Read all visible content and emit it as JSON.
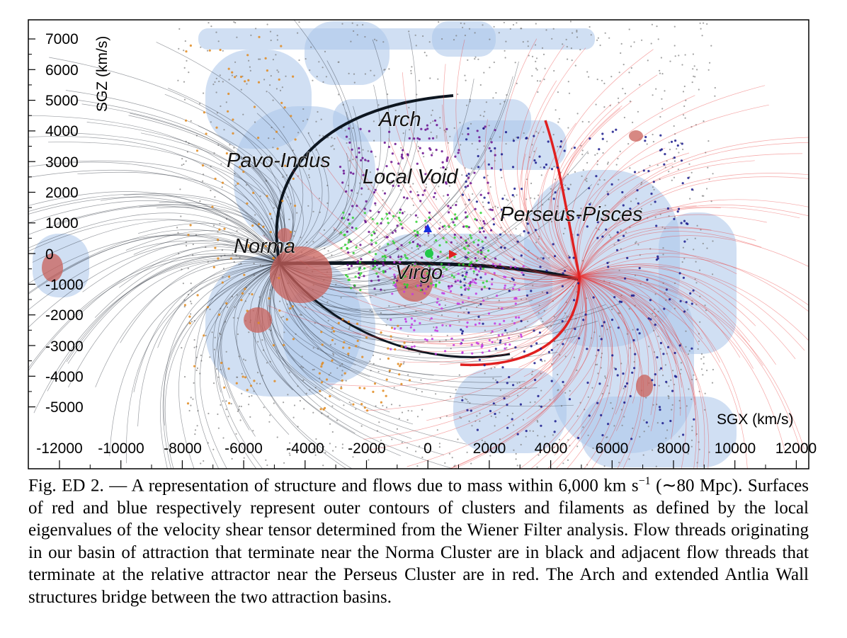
{
  "figure": {
    "x_axis_label": "SGX (km/s)",
    "y_axis_label": "SGZ (km/s)",
    "x_ticks": [
      "-12000",
      "-10000",
      "-8000",
      "-6000",
      "-4000",
      "-2000",
      "0",
      "2000",
      "4000",
      "6000",
      "8000",
      "10000",
      "12000"
    ],
    "y_ticks": [
      "7000",
      "6000",
      "5000",
      "4000",
      "3000",
      "2000",
      "1000",
      "0",
      "-1000",
      "-2000",
      "-3000",
      "-4000",
      "-5000"
    ],
    "labels": {
      "arch": "Arch",
      "pavo_indus": "Pavo-Indus",
      "local_void": "Local Void",
      "perseus_pisces": "Perseus-Pisces",
      "norma": "Norma",
      "virgo": "Virgo"
    },
    "colors": {
      "filament_surface": "#a9c4ea",
      "cluster_surface": "#c9605a",
      "norma_flow": "#1e2530",
      "perseus_flow": "#e83a3a",
      "galaxy_gray": "#7a7a7a",
      "galaxy_purple": "#6a0f8e",
      "galaxy_navy": "#1a1a8c",
      "galaxy_green": "#2fd22f",
      "galaxy_orange": "#e08a1f",
      "galaxy_magenta": "#c43ae0"
    }
  },
  "caption": {
    "prefix": "Fig. ED 2. — A representation of structure and flows due to mass within 6,000 km s",
    "superscript": "−1",
    "text": " (∼80 Mpc). Surfaces of red and blue respectively represent outer contours of clusters and filaments as defined by the local eigenvalues of the velocity shear tensor determined from the Wiener Filter analysis. Flow threads originating in our basin of attraction that terminate near the Norma Cluster are in black and adjacent flow threads that terminate at the relative attractor near the Perseus Cluster are in red. The Arch and extended Antlia Wall structures bridge between the two attraction basins."
  }
}
